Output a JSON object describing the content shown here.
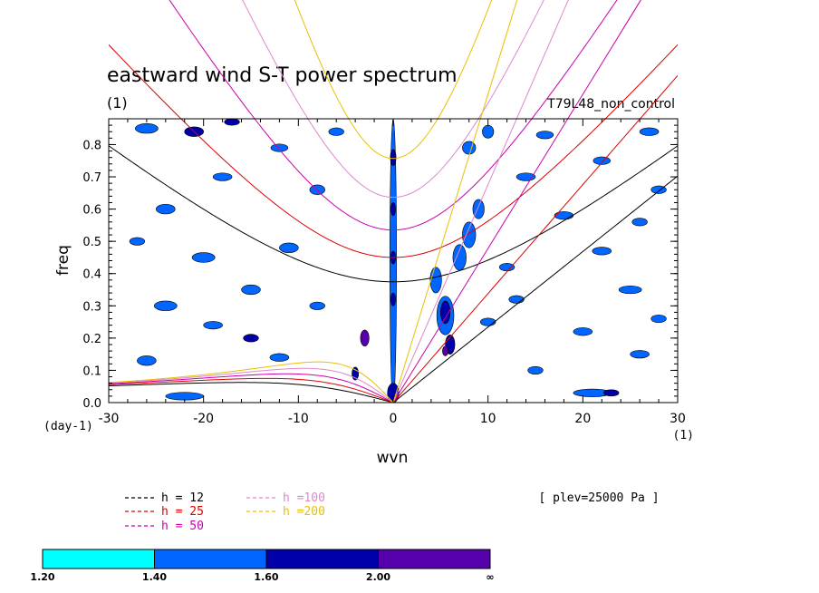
{
  "chart_data": {
    "type": "heatmap",
    "title": "eastward wind S-T power spectrum",
    "subtitle_left": "(1)",
    "subtitle_right": "T79L48_non_control",
    "xlabel": "wvn",
    "ylabel": "freq",
    "x_units": "(1)",
    "y_units": "(day-1)",
    "xlim": [
      -30,
      30
    ],
    "ylim": [
      0,
      0.88
    ],
    "x_ticks": [
      "-30",
      "-20",
      "-10",
      "0",
      "10",
      "20",
      "30"
    ],
    "y_ticks": [
      "0.0",
      "0.1",
      "0.2",
      "0.3",
      "0.4",
      "0.5",
      "0.6",
      "0.7",
      "0.8"
    ],
    "annotation": "[ plev=25000 Pa ]",
    "dispersion_curves": [
      {
        "name": "h = 12",
        "h": 12,
        "color": "#000000"
      },
      {
        "name": "h = 25",
        "h": 25,
        "color": "#dd0000"
      },
      {
        "name": "h = 50",
        "h": 50,
        "color": "#cc00aa"
      },
      {
        "name": "h =100",
        "h": 100,
        "color": "#dd88cc"
      },
      {
        "name": "h =200",
        "h": 200,
        "color": "#e8c000"
      }
    ],
    "colorbar": {
      "levels": [
        "1.20",
        "1.40",
        "1.60",
        "2.00",
        "∞"
      ],
      "colors": [
        "#00ffff",
        "#0066ff",
        "#0000aa",
        "#5500aa"
      ]
    },
    "contour_regions": [
      {
        "x": 0,
        "y": 0.44,
        "rx": 0.35,
        "ry": 0.44,
        "level": 1
      },
      {
        "x": 0,
        "y": 0.76,
        "rx": 0.3,
        "ry": 0.025,
        "level": 2
      },
      {
        "x": 0,
        "y": 0.6,
        "rx": 0.25,
        "ry": 0.02,
        "level": 2
      },
      {
        "x": 0,
        "y": 0.45,
        "rx": 0.25,
        "ry": 0.02,
        "level": 2
      },
      {
        "x": 0,
        "y": 0.32,
        "rx": 0.25,
        "ry": 0.02,
        "level": 2
      },
      {
        "x": 0,
        "y": 0.03,
        "rx": 0.6,
        "ry": 0.03,
        "level": 2
      },
      {
        "x": -3,
        "y": 0.2,
        "rx": 0.45,
        "ry": 0.025,
        "level": 3
      },
      {
        "x": -4,
        "y": 0.09,
        "rx": 0.35,
        "ry": 0.02,
        "level": 2
      },
      {
        "x": 5.5,
        "y": 0.27,
        "rx": 0.9,
        "ry": 0.06,
        "level": 1
      },
      {
        "x": 5.5,
        "y": 0.28,
        "rx": 0.5,
        "ry": 0.035,
        "level": 2
      },
      {
        "x": 6,
        "y": 0.18,
        "rx": 0.5,
        "ry": 0.03,
        "level": 2
      },
      {
        "x": 5.5,
        "y": 0.16,
        "rx": 0.3,
        "ry": 0.015,
        "level": 3
      },
      {
        "x": 4.5,
        "y": 0.38,
        "rx": 0.6,
        "ry": 0.04,
        "level": 1
      },
      {
        "x": 7,
        "y": 0.45,
        "rx": 0.7,
        "ry": 0.04,
        "level": 1
      },
      {
        "x": 8,
        "y": 0.52,
        "rx": 0.7,
        "ry": 0.04,
        "level": 1
      },
      {
        "x": 9,
        "y": 0.6,
        "rx": 0.6,
        "ry": 0.03,
        "level": 1
      },
      {
        "x": 8,
        "y": 0.79,
        "rx": 0.7,
        "ry": 0.02,
        "level": 1
      },
      {
        "x": 10,
        "y": 0.84,
        "rx": 0.6,
        "ry": 0.02,
        "level": 1
      },
      {
        "x": -24,
        "y": 0.6,
        "rx": 1.0,
        "ry": 0.015,
        "level": 1
      },
      {
        "x": -26,
        "y": 0.85,
        "rx": 1.2,
        "ry": 0.015,
        "level": 1
      },
      {
        "x": -21,
        "y": 0.84,
        "rx": 1.0,
        "ry": 0.015,
        "level": 2
      },
      {
        "x": -17,
        "y": 0.87,
        "rx": 0.8,
        "ry": 0.01,
        "level": 2
      },
      {
        "x": -20,
        "y": 0.45,
        "rx": 1.2,
        "ry": 0.015,
        "level": 1
      },
      {
        "x": -15,
        "y": 0.35,
        "rx": 1.0,
        "ry": 0.015,
        "level": 1
      },
      {
        "x": -24,
        "y": 0.3,
        "rx": 1.2,
        "ry": 0.015,
        "level": 1
      },
      {
        "x": -26,
        "y": 0.13,
        "rx": 1.0,
        "ry": 0.015,
        "level": 1
      },
      {
        "x": -15,
        "y": 0.2,
        "rx": 0.8,
        "ry": 0.012,
        "level": 2
      },
      {
        "x": -22,
        "y": 0.02,
        "rx": 2.0,
        "ry": 0.012,
        "level": 1
      },
      {
        "x": -11,
        "y": 0.48,
        "rx": 1.0,
        "ry": 0.015,
        "level": 1
      },
      {
        "x": -8,
        "y": 0.66,
        "rx": 0.8,
        "ry": 0.015,
        "level": 1
      },
      {
        "x": -18,
        "y": 0.7,
        "rx": 1.0,
        "ry": 0.012,
        "level": 1
      },
      {
        "x": -12,
        "y": 0.79,
        "rx": 0.9,
        "ry": 0.012,
        "level": 1
      },
      {
        "x": -6,
        "y": 0.84,
        "rx": 0.8,
        "ry": 0.012,
        "level": 1
      },
      {
        "x": -27,
        "y": 0.5,
        "rx": 0.8,
        "ry": 0.012,
        "level": 1
      },
      {
        "x": -19,
        "y": 0.24,
        "rx": 1.0,
        "ry": 0.012,
        "level": 1
      },
      {
        "x": -12,
        "y": 0.14,
        "rx": 1.0,
        "ry": 0.012,
        "level": 1
      },
      {
        "x": -8,
        "y": 0.3,
        "rx": 0.8,
        "ry": 0.012,
        "level": 1
      },
      {
        "x": 14,
        "y": 0.7,
        "rx": 1.0,
        "ry": 0.012,
        "level": 1
      },
      {
        "x": 18,
        "y": 0.58,
        "rx": 1.0,
        "ry": 0.012,
        "level": 1
      },
      {
        "x": 22,
        "y": 0.47,
        "rx": 1.0,
        "ry": 0.012,
        "level": 1
      },
      {
        "x": 25,
        "y": 0.35,
        "rx": 1.2,
        "ry": 0.012,
        "level": 1
      },
      {
        "x": 20,
        "y": 0.22,
        "rx": 1.0,
        "ry": 0.012,
        "level": 1
      },
      {
        "x": 26,
        "y": 0.15,
        "rx": 1.0,
        "ry": 0.012,
        "level": 1
      },
      {
        "x": 15,
        "y": 0.1,
        "rx": 0.8,
        "ry": 0.012,
        "level": 1
      },
      {
        "x": 21,
        "y": 0.03,
        "rx": 2.0,
        "ry": 0.012,
        "level": 1
      },
      {
        "x": 23,
        "y": 0.03,
        "rx": 0.8,
        "ry": 0.01,
        "level": 2
      },
      {
        "x": 27,
        "y": 0.84,
        "rx": 1.0,
        "ry": 0.012,
        "level": 1
      },
      {
        "x": 16,
        "y": 0.83,
        "rx": 0.9,
        "ry": 0.012,
        "level": 1
      },
      {
        "x": 22,
        "y": 0.75,
        "rx": 0.9,
        "ry": 0.012,
        "level": 1
      },
      {
        "x": 28,
        "y": 0.66,
        "rx": 0.8,
        "ry": 0.012,
        "level": 1
      },
      {
        "x": 12,
        "y": 0.42,
        "rx": 0.8,
        "ry": 0.012,
        "level": 1
      },
      {
        "x": 13,
        "y": 0.32,
        "rx": 0.8,
        "ry": 0.012,
        "level": 1
      },
      {
        "x": 10,
        "y": 0.25,
        "rx": 0.8,
        "ry": 0.012,
        "level": 1
      },
      {
        "x": 28,
        "y": 0.26,
        "rx": 0.8,
        "ry": 0.012,
        "level": 1
      },
      {
        "x": 26,
        "y": 0.56,
        "rx": 0.8,
        "ry": 0.012,
        "level": 1
      }
    ]
  }
}
